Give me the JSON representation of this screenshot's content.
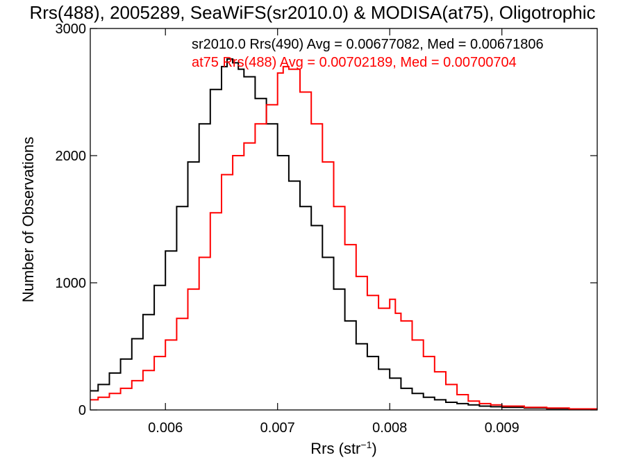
{
  "chart_data": {
    "type": "line",
    "title": "Rrs(488), 2005289, SeaWiFS(sr2010.0) & MODISA(at75), Oligotrophic",
    "xlabel_main": "Rrs (str",
    "xlabel_sup": "−1",
    "xlabel_end": ")",
    "ylabel": "Number of Observations",
    "xlim": [
      0.00533,
      0.00985
    ],
    "ylim": [
      0,
      3000
    ],
    "x_ticks": [
      0.006,
      0.007,
      0.008,
      0.009
    ],
    "x_tick_labels": [
      "0.006",
      "0.007",
      "0.008",
      "0.009"
    ],
    "y_ticks": [
      0,
      1000,
      2000,
      3000
    ],
    "y_tick_labels": [
      "0",
      "1000",
      "2000",
      "3000"
    ],
    "grid": false,
    "histogram_step": true,
    "series": [
      {
        "name": "sr2010.0 Rrs(490)",
        "color": "#000000",
        "annotation": "sr2010.0 Rrs(490) Avg = 0.00677082, Med = 0.00671806",
        "x": [
          0.00533,
          0.0054,
          0.0055,
          0.0056,
          0.0057,
          0.0058,
          0.0059,
          0.006,
          0.0061,
          0.0062,
          0.0063,
          0.0064,
          0.0065,
          0.00655,
          0.0066,
          0.00665,
          0.0067,
          0.0068,
          0.0069,
          0.007,
          0.0071,
          0.0072,
          0.0073,
          0.0074,
          0.0075,
          0.0076,
          0.0077,
          0.0078,
          0.0079,
          0.008,
          0.0081,
          0.0082,
          0.0083,
          0.0084,
          0.0085,
          0.0086,
          0.0087,
          0.0088,
          0.0089,
          0.009,
          0.0092,
          0.0094,
          0.0096,
          0.00985
        ],
        "y": [
          150,
          200,
          290,
          400,
          560,
          750,
          980,
          1250,
          1600,
          1950,
          2250,
          2520,
          2700,
          2760,
          2730,
          2680,
          2620,
          2450,
          2250,
          2000,
          1800,
          1600,
          1450,
          1200,
          950,
          700,
          520,
          420,
          320,
          250,
          170,
          130,
          100,
          80,
          60,
          50,
          40,
          30,
          25,
          20,
          15,
          10,
          5,
          3
        ]
      },
      {
        "name": "at75 Rrs(488)",
        "color": "#ff0000",
        "annotation": "at75 Rrs(488) Avg = 0.00702189, Med = 0.00700704",
        "x": [
          0.00533,
          0.0054,
          0.0055,
          0.0056,
          0.0057,
          0.0058,
          0.0059,
          0.006,
          0.0061,
          0.0062,
          0.0063,
          0.0064,
          0.0065,
          0.0066,
          0.0067,
          0.0068,
          0.0069,
          0.007,
          0.00705,
          0.0071,
          0.0072,
          0.0073,
          0.0074,
          0.0075,
          0.0076,
          0.0077,
          0.0078,
          0.0079,
          0.008,
          0.00805,
          0.0081,
          0.0082,
          0.0083,
          0.0084,
          0.0085,
          0.0086,
          0.0087,
          0.0088,
          0.0089,
          0.009,
          0.0092,
          0.0094,
          0.0096,
          0.00985
        ],
        "y": [
          80,
          100,
          130,
          170,
          230,
          310,
          420,
          550,
          720,
          950,
          1200,
          1550,
          1850,
          2000,
          2100,
          2250,
          2400,
          2650,
          2700,
          2680,
          2500,
          2250,
          1950,
          1600,
          1300,
          1050,
          900,
          800,
          870,
          760,
          700,
          550,
          420,
          300,
          200,
          120,
          70,
          50,
          40,
          30,
          20,
          15,
          8,
          5
        ]
      }
    ]
  }
}
